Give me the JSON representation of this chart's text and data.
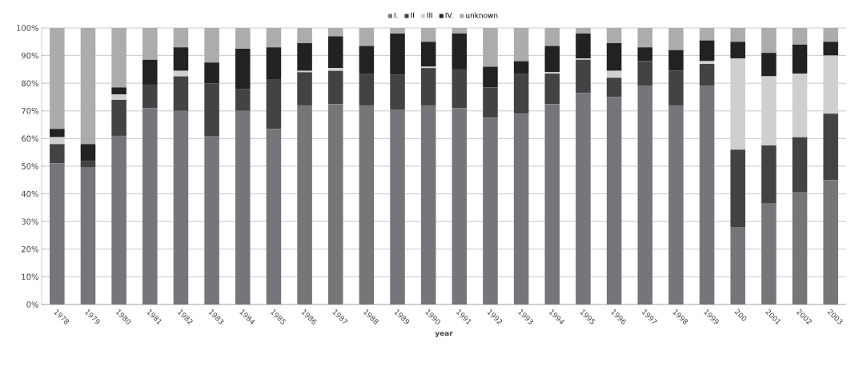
{
  "chart_data": {
    "type": "bar",
    "stacked": true,
    "xlabel": "year",
    "categories": [
      "1978",
      "1979",
      "1980",
      "1981",
      "1982",
      "1983",
      "1984",
      "1985",
      "1986",
      "1987",
      "1988",
      "1989",
      "1990",
      "1991",
      "1992",
      "1993",
      "1994",
      "1995",
      "1996",
      "1997",
      "1998",
      "1999",
      "200",
      "2001",
      "2002",
      "2003"
    ],
    "series": [
      {
        "name": "I.",
        "color": "#76767a",
        "values": [
          51,
          49.5,
          61,
          71,
          70,
          61,
          70,
          63.5,
          72,
          72.5,
          72,
          70.5,
          72,
          71,
          67.5,
          69,
          72.5,
          76.5,
          75,
          79,
          72,
          79,
          28,
          36.5,
          40.5,
          45
        ]
      },
      {
        "name": "II",
        "color": "#434345",
        "values": [
          7,
          2.5,
          13,
          8.5,
          12.5,
          19,
          8,
          18,
          12,
          12,
          11.5,
          12.5,
          13.5,
          14,
          11,
          14.5,
          11,
          12,
          7,
          9,
          12.5,
          8,
          28,
          21,
          20,
          24
        ]
      },
      {
        "name": "III",
        "color": "#cfcfcf",
        "values": [
          2.5,
          0,
          2,
          0,
          2,
          0,
          0,
          0,
          0.5,
          1,
          0,
          0,
          0.5,
          0,
          0,
          0,
          0.5,
          0.5,
          2.5,
          0,
          0,
          1,
          33,
          25,
          23,
          21
        ]
      },
      {
        "name": "IV.",
        "color": "#222222",
        "values": [
          3,
          6,
          2.5,
          9,
          8.5,
          7.5,
          14.5,
          11.5,
          10,
          11.5,
          10,
          15,
          9,
          13,
          7.5,
          4.5,
          9.5,
          9,
          10,
          5,
          7.5,
          7.5,
          6,
          8.5,
          10.5,
          5
        ]
      },
      {
        "name": "unknown",
        "color": "#acacae",
        "values": [
          36.5,
          42,
          21.5,
          11.5,
          7,
          12.5,
          7.5,
          7,
          5.5,
          3,
          6.5,
          2,
          5,
          2,
          14,
          12,
          6.5,
          2,
          5.5,
          7,
          8,
          4.5,
          5,
          9,
          6,
          5
        ]
      }
    ],
    "ylim": [
      0,
      100
    ],
    "yticks": [
      {
        "value": 0,
        "label": "0%"
      },
      {
        "value": 10,
        "label": "10%"
      },
      {
        "value": 20,
        "label": "20%"
      },
      {
        "value": 30,
        "label": "30%"
      },
      {
        "value": 40,
        "label": "40%"
      },
      {
        "value": 50,
        "label": "50%"
      },
      {
        "value": 60,
        "label": "60%"
      },
      {
        "value": 70,
        "label": "70%"
      },
      {
        "value": 80,
        "label": "80%"
      },
      {
        "value": 90,
        "label": "90%"
      },
      {
        "value": 100,
        "label": "100%"
      }
    ],
    "grid": "y",
    "legend": "top"
  }
}
